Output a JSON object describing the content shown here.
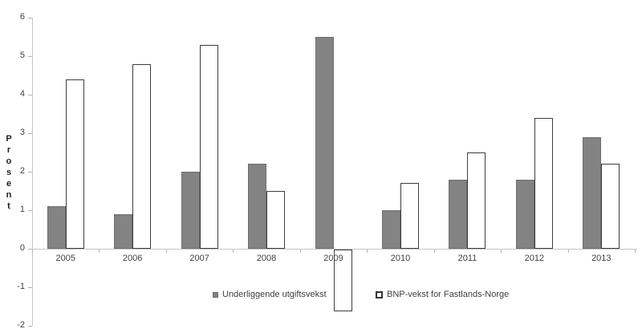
{
  "chart_data": {
    "type": "bar",
    "title": "",
    "xlabel": "",
    "ylabel": "Prosent",
    "ylim": [
      -2,
      6
    ],
    "ytick_step": 1,
    "grid": false,
    "legend_position": "bottom",
    "categories": [
      "2005",
      "2006",
      "2007",
      "2008",
      "2009",
      "2010",
      "2011",
      "2012",
      "2013"
    ],
    "series": [
      {
        "name": "Underliggende utgiftsvekst",
        "values": [
          1.1,
          0.9,
          2.0,
          2.2,
          5.5,
          1.0,
          1.8,
          1.8,
          2.9
        ],
        "fill": "#838383",
        "border": "#6e6e6e"
      },
      {
        "name": "BNP-vekst for Fastlands-Norge",
        "values": [
          4.4,
          4.8,
          5.3,
          1.5,
          -1.6,
          1.7,
          2.5,
          3.4,
          2.2
        ],
        "fill": "#ffffff",
        "border": "#3d3d3d"
      }
    ],
    "colors": {
      "axis": "#c6c6c6",
      "tick": "#b3b3b3",
      "text": "#404040"
    }
  }
}
